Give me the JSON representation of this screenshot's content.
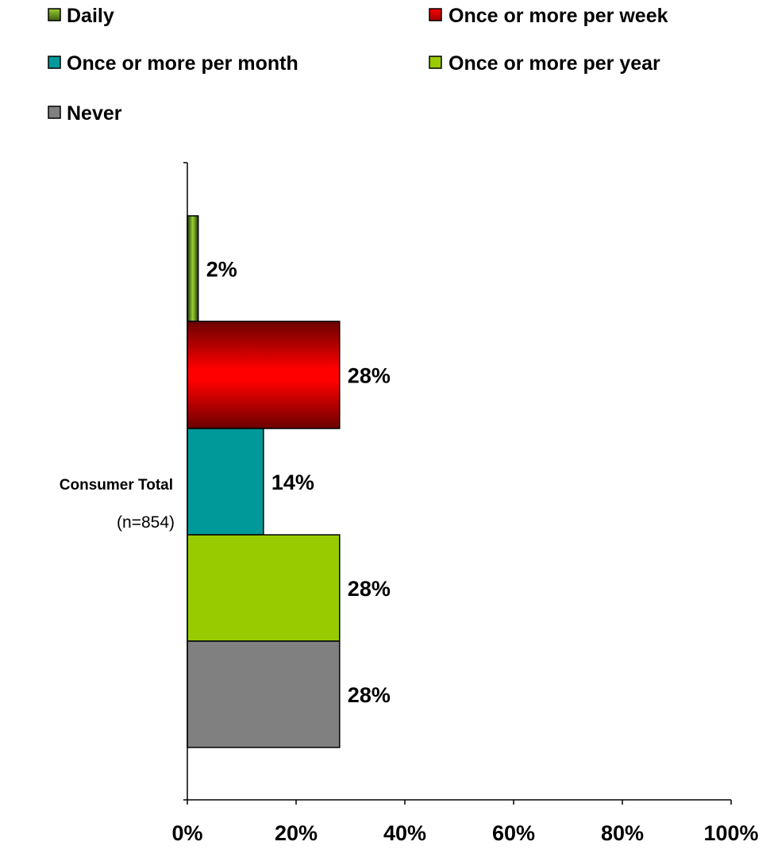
{
  "chart_data": {
    "type": "bar",
    "orientation": "horizontal",
    "categories": [
      "Consumer Total"
    ],
    "category_sublabels": [
      "(n=854)"
    ],
    "series": [
      {
        "name": "Daily",
        "values": [
          2
        ],
        "color": "#6E9A1E",
        "gradient": [
          "#1E3A08",
          "#9ACD32"
        ]
      },
      {
        "name": "Once or more per week",
        "values": [
          28
        ],
        "color": "#FF0000",
        "gradient": [
          "#6B0000",
          "#FF0000"
        ]
      },
      {
        "name": "Once or more per month",
        "values": [
          14
        ],
        "color": "#009999"
      },
      {
        "name": "Once or more per year",
        "values": [
          28
        ],
        "color": "#99CC00"
      },
      {
        "name": "Never",
        "values": [
          28
        ],
        "color": "#808080"
      }
    ],
    "data_labels": [
      "2%",
      "28%",
      "14%",
      "28%",
      "28%"
    ],
    "xlim": [
      0,
      100
    ],
    "xticks": [
      "0%",
      "20%",
      "40%",
      "60%",
      "80%",
      "100%"
    ],
    "legend_position": "top",
    "grid": false
  }
}
